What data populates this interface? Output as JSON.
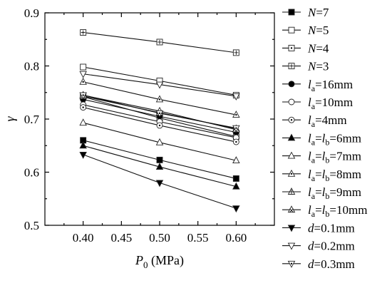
{
  "chart_data": {
    "type": "line",
    "x": [
      0.4,
      0.5,
      0.6
    ],
    "xlim": [
      0.35,
      0.65
    ],
    "ylim": [
      0.5,
      0.9
    ],
    "xticks": [
      "0.40",
      "0.45",
      "0.50",
      "0.55",
      "0.60"
    ],
    "yticks": [
      "0.5",
      "0.6",
      "0.7",
      "0.8",
      "0.9"
    ],
    "xlabel": {
      "italic": "P",
      "sub": "0",
      "rest": " (MPa)"
    },
    "ylabel": "γ",
    "grid": false,
    "legend_position": "right",
    "series": [
      {
        "label": [
          "it:N",
          "=7"
        ],
        "marker": "square-filled",
        "values": [
          0.66,
          0.623,
          0.588
        ]
      },
      {
        "label": [
          "it:N",
          "=5"
        ],
        "marker": "square-open",
        "values": [
          0.798,
          0.772,
          0.745
        ]
      },
      {
        "label": [
          "it:N",
          "=4"
        ],
        "marker": "square-dot",
        "values": [
          0.742,
          0.702,
          0.667
        ]
      },
      {
        "label": [
          "it:N",
          "=3"
        ],
        "marker": "square-plus",
        "values": [
          0.863,
          0.845,
          0.825
        ]
      },
      {
        "label": [
          "it:l",
          "sub:a",
          "=16mm"
        ],
        "marker": "circle-filled",
        "values": [
          0.737,
          0.705,
          0.675
        ]
      },
      {
        "label": [
          "it:l",
          "sub:a",
          "=10mm"
        ],
        "marker": "circle-open",
        "values": [
          0.727,
          0.695,
          0.665
        ]
      },
      {
        "label": [
          "it:l",
          "sub:a",
          "=4mm"
        ],
        "marker": "circle-dot",
        "values": [
          0.722,
          0.688,
          0.657
        ]
      },
      {
        "label": [
          "it:l",
          "sub:a",
          "=",
          "it:l",
          "sub:b",
          "=6mm"
        ],
        "marker": "triangle-filled",
        "values": [
          0.65,
          0.61,
          0.573
        ]
      },
      {
        "label": [
          "it:l",
          "sub:a",
          "=",
          "it:l",
          "sub:b",
          "=7mm"
        ],
        "marker": "triangle-open",
        "values": [
          0.693,
          0.656,
          0.622
        ]
      },
      {
        "label": [
          "it:l",
          "sub:a",
          "=",
          "it:l",
          "sub:b",
          "=8mm"
        ],
        "marker": "triangle-dot",
        "values": [
          0.77,
          0.737,
          0.708
        ]
      },
      {
        "label": [
          "it:l",
          "sub:a",
          "=",
          "it:l",
          "sub:b",
          "=9mm"
        ],
        "marker": "triangle-plus",
        "values": [
          0.743,
          0.712,
          0.682
        ]
      },
      {
        "label": [
          "it:l",
          "sub:a",
          "=",
          "it:l",
          "sub:b",
          "=10mm"
        ],
        "marker": "triangle-x",
        "values": [
          0.745,
          0.715,
          0.68
        ]
      },
      {
        "label": [
          "it:d",
          "=0.1mm"
        ],
        "marker": "triangle-down-filled",
        "values": [
          0.633,
          0.58,
          0.532
        ]
      },
      {
        "label": [
          "it:d",
          "=0.2mm"
        ],
        "marker": "triangle-down-open",
        "values": [
          0.785,
          0.765,
          0.743
        ]
      },
      {
        "label": [
          "it:d",
          "=0.3mm"
        ],
        "marker": "triangle-down-dot",
        "values": [
          0.745,
          0.711,
          0.683
        ]
      }
    ]
  }
}
